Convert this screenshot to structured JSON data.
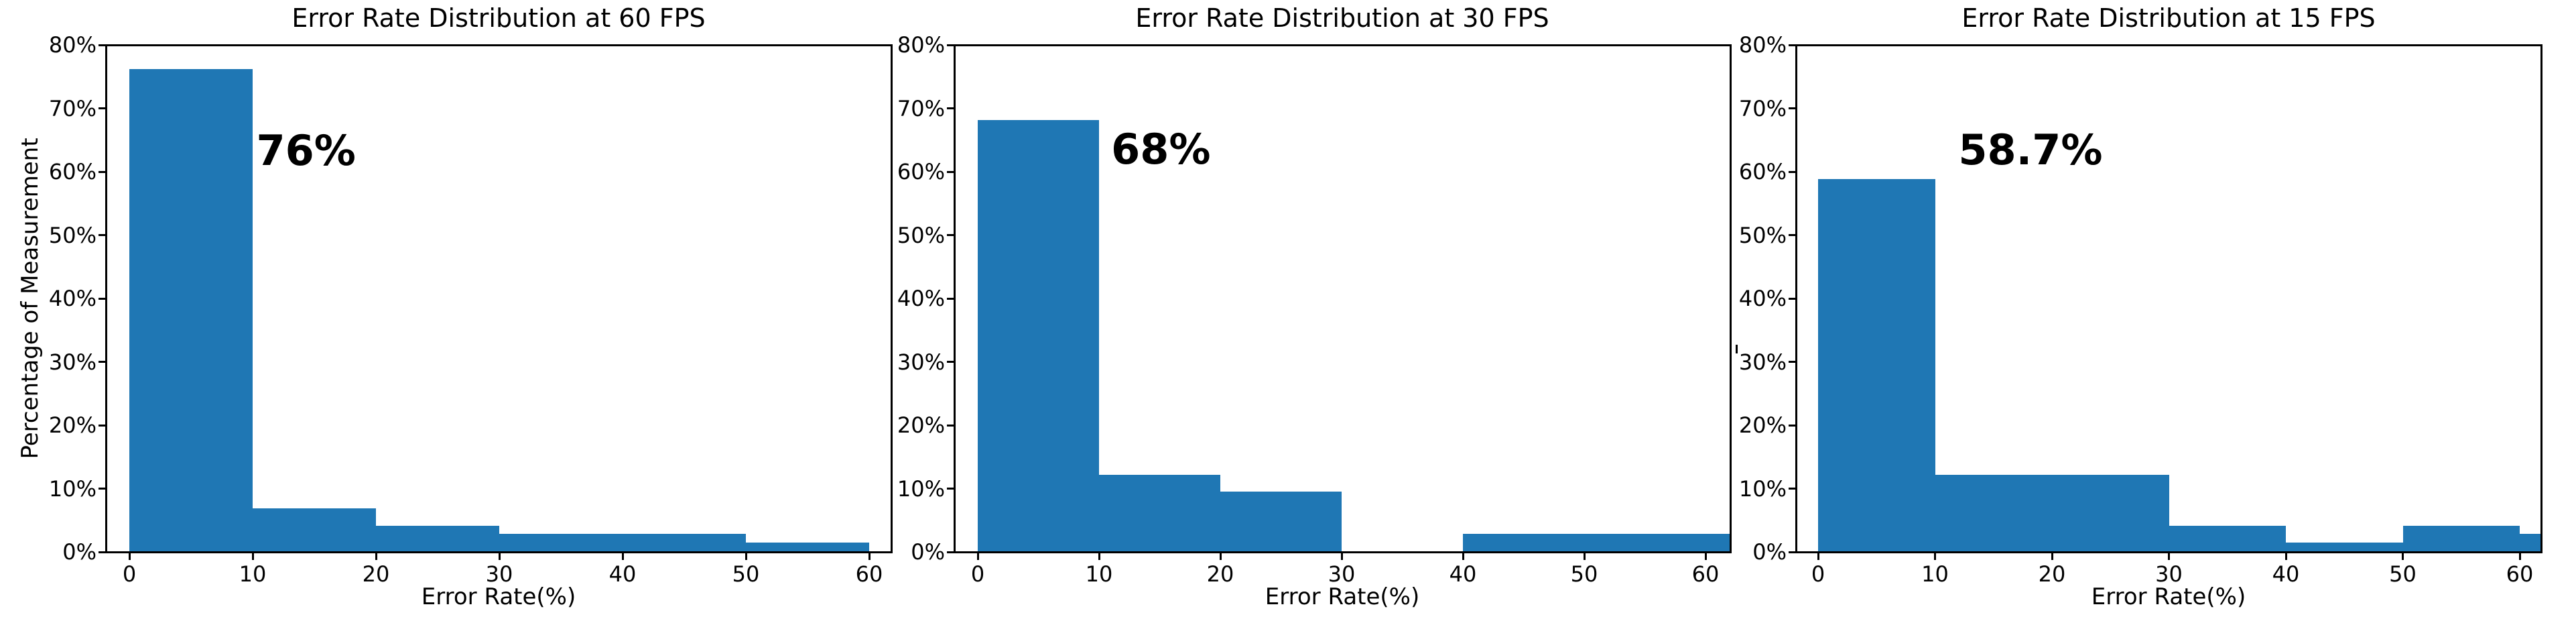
{
  "figure": {
    "background": "#ffffff",
    "bar_color": "#1f77b4",
    "text_color": "#000000",
    "ytick_labels": [
      "0%",
      "10%",
      "20%",
      "30%",
      "40%",
      "50%",
      "60%",
      "70%",
      "80%"
    ],
    "xtick_labels": [
      "0",
      "10",
      "20",
      "30",
      "40",
      "50",
      "60"
    ],
    "stray_mark": "'"
  },
  "chart_data": [
    {
      "type": "bar",
      "subtype": "histogram",
      "title": "Error Rate Distribution at 60 FPS",
      "xlabel": "Error Rate(%)",
      "ylabel": "Percentage of Measurement",
      "xlim": [
        -2,
        62
      ],
      "ylim": [
        0,
        80
      ],
      "grid": false,
      "legend": false,
      "bin_edges": [
        0,
        10,
        20,
        30,
        40,
        50,
        60
      ],
      "values_pct": [
        76,
        6.67,
        4,
        2.67,
        2.67,
        1.33
      ],
      "annotation": {
        "text": "76%",
        "x": 10.3,
        "y": 63.3
      }
    },
    {
      "type": "bar",
      "subtype": "histogram",
      "title": "Error Rate Distribution at 30 FPS",
      "xlabel": "Error Rate(%)",
      "ylabel": "",
      "xlim": [
        -2,
        62
      ],
      "ylim": [
        0,
        80
      ],
      "grid": false,
      "legend": false,
      "bin_edges": [
        0,
        10,
        20,
        30,
        40,
        50,
        60,
        70
      ],
      "values_pct": [
        68,
        12,
        9.33,
        0,
        2.67,
        2.67,
        2.67
      ],
      "annotation": {
        "text": "68%",
        "x": 11.0,
        "y": 63.5
      }
    },
    {
      "type": "bar",
      "subtype": "histogram",
      "title": "Error Rate Distribution at 15 FPS",
      "xlabel": "Error Rate(%)",
      "ylabel": "",
      "xlim": [
        -2,
        62
      ],
      "ylim": [
        0,
        80
      ],
      "grid": false,
      "legend": false,
      "bin_edges": [
        0,
        10,
        20,
        30,
        40,
        50,
        60,
        70
      ],
      "values_pct": [
        58.7,
        12,
        12,
        4,
        1.33,
        4,
        2.67
      ],
      "annotation": {
        "text": "58.7%",
        "x": 12.0,
        "y": 63.4
      }
    }
  ]
}
